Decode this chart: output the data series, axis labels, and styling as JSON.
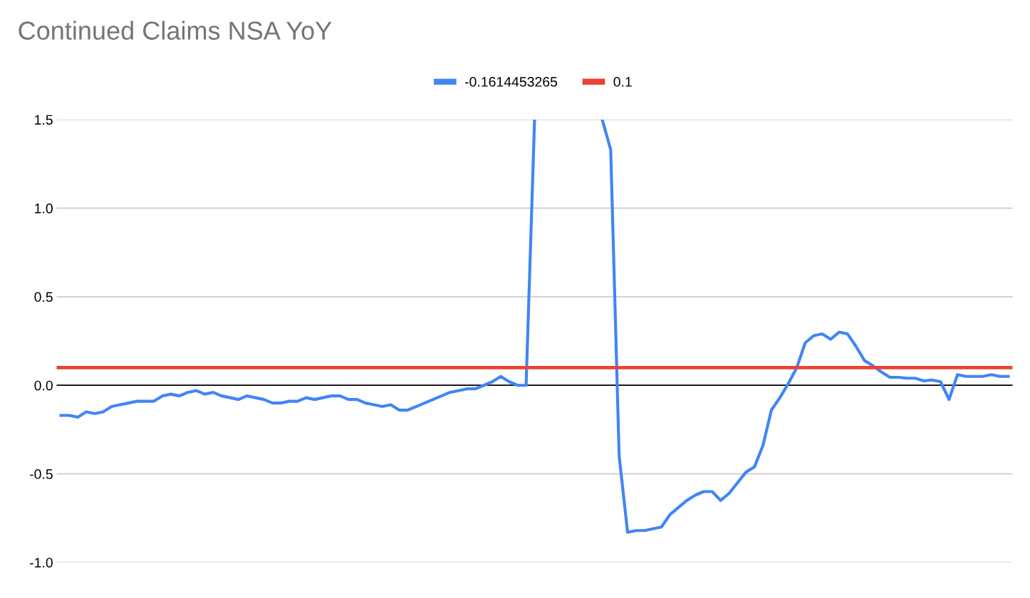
{
  "chart_data": {
    "type": "line",
    "title": "Continued Claims NSA YoY",
    "categories": [
      null,
      null,
      null,
      null,
      null,
      null,
      null,
      null,
      null,
      null,
      null,
      null,
      null,
      null,
      null,
      null,
      null,
      null,
      null,
      null,
      null,
      null,
      null,
      null,
      null,
      null,
      null,
      null,
      null,
      null,
      null,
      null,
      null,
      null,
      null,
      null,
      null,
      null,
      null,
      null,
      null,
      null,
      null,
      null,
      null,
      null,
      null,
      null,
      null,
      null,
      null,
      null,
      null,
      null,
      null,
      null,
      null,
      null,
      null,
      null,
      null,
      null,
      null,
      null,
      null,
      null,
      null,
      null,
      null,
      null,
      null,
      null,
      null,
      null,
      null,
      null,
      null,
      null,
      null,
      null,
      null,
      null,
      null,
      null,
      null,
      null,
      null,
      null,
      null,
      null,
      null,
      null,
      null,
      null,
      null,
      null,
      null,
      null,
      null,
      null,
      null,
      null,
      null,
      null,
      null,
      null,
      null,
      null,
      null,
      null,
      null,
      null,
      null
    ],
    "series": [
      {
        "name": "-0.1614453265",
        "color": "#4285f4",
        "values": [
          -0.17,
          -0.17,
          -0.18,
          -0.15,
          -0.16,
          -0.15,
          -0.12,
          -0.11,
          -0.1,
          -0.09,
          -0.09,
          -0.09,
          -0.06,
          -0.05,
          -0.06,
          -0.04,
          -0.03,
          -0.05,
          -0.04,
          -0.06,
          -0.07,
          -0.08,
          -0.06,
          -0.07,
          -0.08,
          -0.1,
          -0.1,
          -0.09,
          -0.09,
          -0.07,
          -0.08,
          -0.07,
          -0.06,
          -0.06,
          -0.08,
          -0.08,
          -0.1,
          -0.11,
          -0.12,
          -0.11,
          -0.14,
          -0.14,
          -0.12,
          -0.1,
          -0.08,
          -0.06,
          -0.04,
          -0.03,
          -0.02,
          -0.02,
          0.0,
          0.02,
          0.05,
          0.02,
          0.0,
          0.0,
          1.5,
          null,
          null,
          null,
          null,
          null,
          null,
          null,
          1.5,
          1.33,
          -0.4,
          -0.83,
          -0.82,
          -0.82,
          -0.81,
          -0.8,
          -0.73,
          -0.69,
          -0.65,
          -0.62,
          -0.6,
          -0.6,
          -0.65,
          -0.61,
          -0.55,
          -0.49,
          -0.46,
          -0.34,
          -0.14,
          -0.07,
          0.01,
          0.1,
          0.24,
          0.28,
          0.29,
          0.26,
          0.3,
          0.29,
          0.22,
          0.14,
          0.11,
          0.075,
          0.045,
          0.045,
          0.04,
          0.04,
          0.025,
          0.03,
          0.02,
          -0.08,
          0.06,
          0.05,
          0.05,
          0.05,
          0.06,
          0.05,
          0.05
        ]
      }
    ],
    "ref_lines": [
      {
        "axis": "y",
        "value": 0,
        "color": "#000000"
      },
      {
        "axis": "y",
        "value": 0.1,
        "label": "0.1",
        "color": "#ea4335"
      }
    ],
    "ylim": [
      -1.0,
      1.5
    ],
    "yticks": [
      {
        "value": -1.0,
        "label": "-1.0"
      },
      -0.5,
      {
        "value": 0.0,
        "label": "0.0"
      },
      0.5,
      {
        "value": 1.0,
        "label": "1.0"
      },
      1.5
    ],
    "grid": "y",
    "legend": "top",
    "marker": "none",
    "line_style": "solid"
  }
}
